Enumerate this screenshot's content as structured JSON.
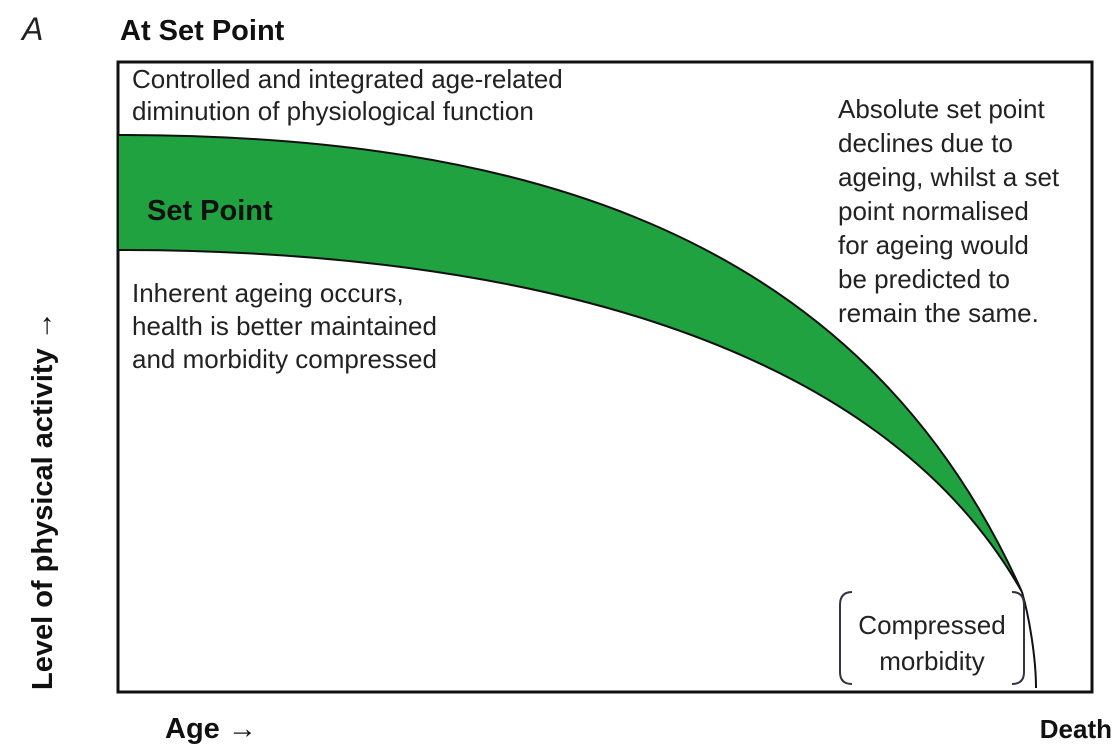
{
  "panel_label": "A",
  "title": "At Set Point",
  "top_annotation": [
    "Controlled and integrated age-related",
    "diminution of physiological function"
  ],
  "band_label": "Set Point",
  "lower_annotation": [
    "Inherent ageing occurs,",
    "health is better maintained",
    "and morbidity compressed"
  ],
  "right_annotation": [
    "Absolute set point",
    "declines due to",
    "ageing, whilst a set",
    "point normalised",
    "for ageing would",
    "be predicted to",
    "remain the same."
  ],
  "bracket_label": [
    "Compressed",
    "morbidity"
  ],
  "y_axis_label": "Level of physical activity →",
  "x_axis_label": "Age →",
  "x_axis_end_label": "Death"
}
